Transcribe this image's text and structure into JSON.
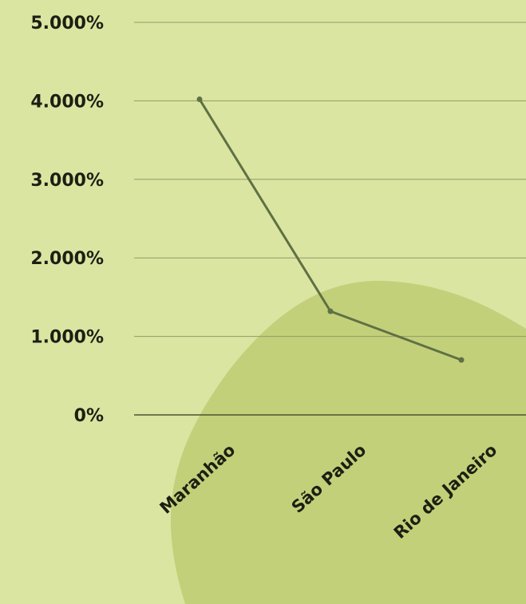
{
  "chart_data": {
    "type": "line",
    "categories": [
      "Maranhão",
      "São Paulo",
      "Rio de Janeiro"
    ],
    "series": [
      {
        "values": [
          4.02,
          1.32,
          0.7
        ]
      }
    ],
    "yticks": [
      "0%",
      "1.000%",
      "2.000%",
      "3.000%",
      "4.000%",
      "5.000%"
    ],
    "ylim": [
      0,
      5
    ],
    "grid": true,
    "legend": "none",
    "colors": {
      "background": "#dbe5a2",
      "blob": "#c3d07a",
      "line": "#5f7143",
      "gridline": "#8f9b65",
      "axis": "#4a5430",
      "text": "#1c1f12"
    }
  }
}
